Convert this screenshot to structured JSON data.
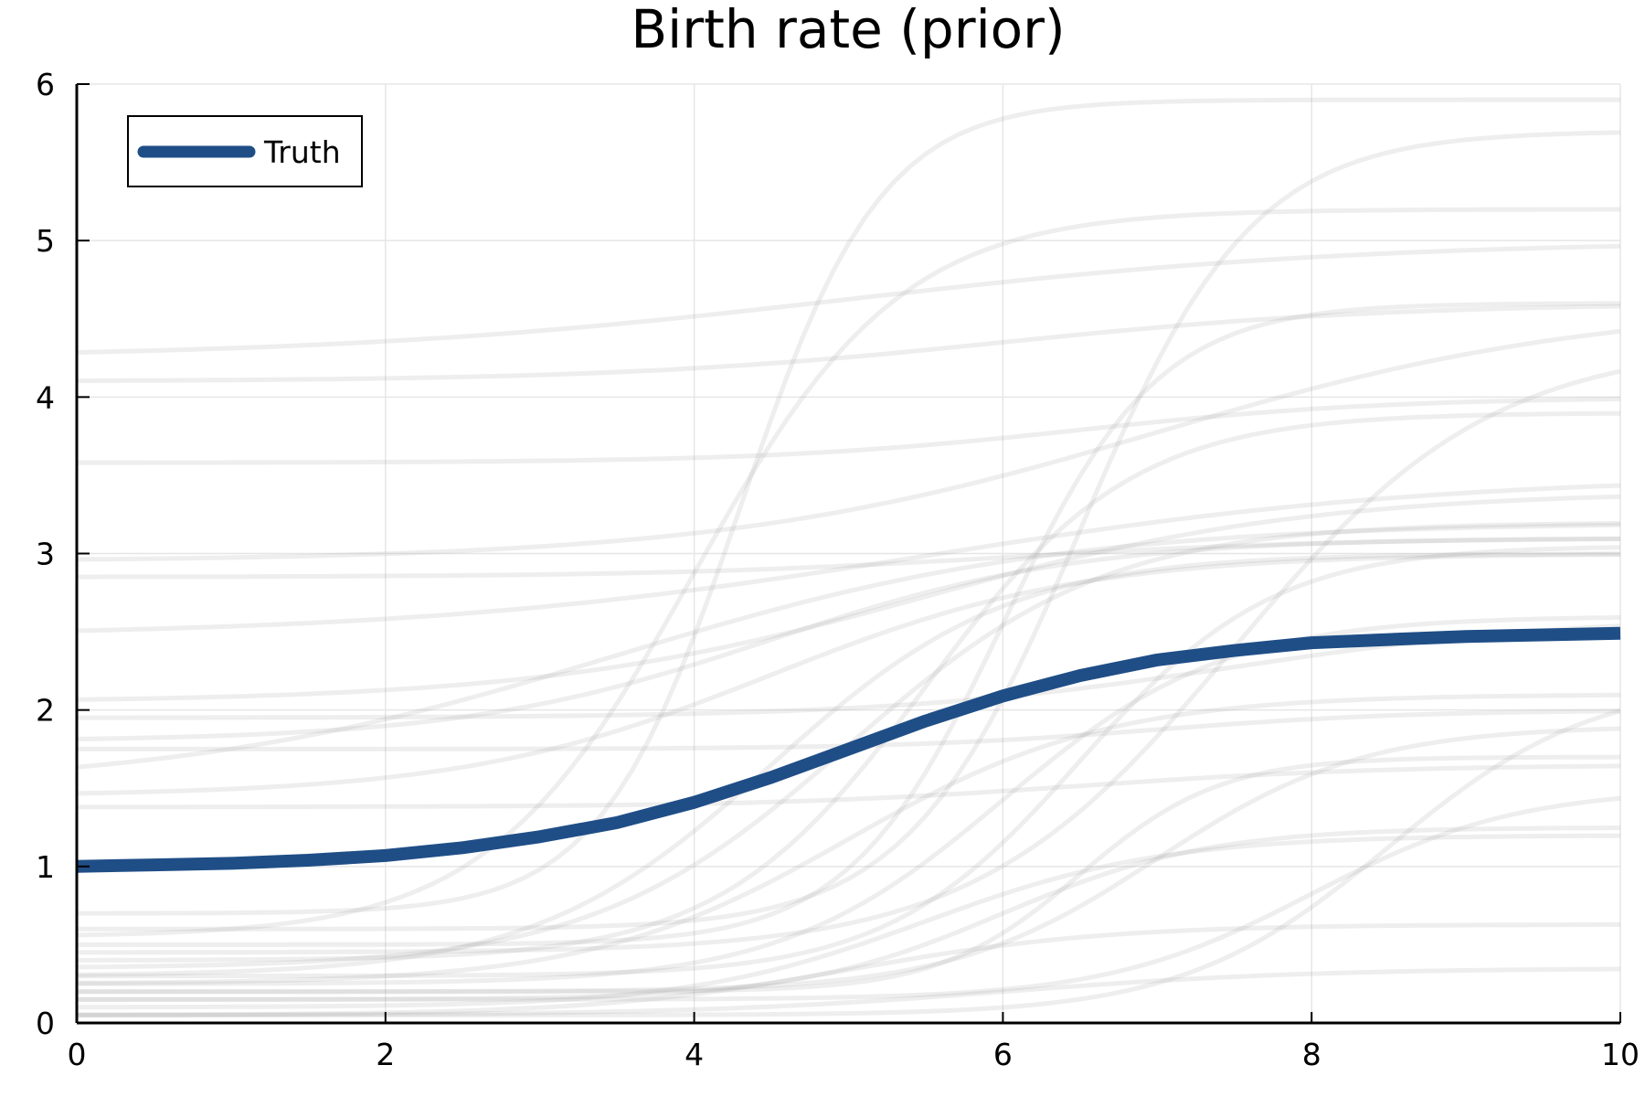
{
  "chart_data": {
    "type": "line",
    "title": "Birth rate (prior)",
    "xlabel": "",
    "ylabel": "",
    "xlim": [
      0,
      10
    ],
    "ylim": [
      0,
      6
    ],
    "x_ticks": [
      0,
      2,
      4,
      6,
      8,
      10
    ],
    "y_ticks": [
      0,
      1,
      2,
      3,
      4,
      5,
      6
    ],
    "grid": true,
    "legend": {
      "position": "top-left",
      "entries": [
        "Truth"
      ]
    },
    "colors": {
      "truth": "#1f4e87",
      "prior_samples": "#a0a0a0",
      "grid": "#e6e6e6",
      "axis": "#000000"
    },
    "series": [
      {
        "name": "Truth",
        "x": [
          0,
          0.5,
          1,
          1.5,
          2,
          2.5,
          3,
          3.5,
          4,
          4.5,
          5,
          5.5,
          6,
          6.5,
          7,
          7.5,
          8,
          8.5,
          9,
          9.5,
          10
        ],
        "y": [
          1.0,
          1.01,
          1.02,
          1.04,
          1.07,
          1.12,
          1.19,
          1.28,
          1.41,
          1.57,
          1.75,
          1.93,
          2.09,
          2.22,
          2.32,
          2.38,
          2.43,
          2.45,
          2.47,
          2.48,
          2.49
        ]
      }
    ],
    "prior_samples": [
      {
        "a": 4.25,
        "b": 5.0,
        "x0": 5.0,
        "k": 0.6
      },
      {
        "a": 4.1,
        "b": 4.6,
        "x0": 6.0,
        "k": 0.8
      },
      {
        "a": 3.58,
        "b": 4.0,
        "x0": 6.5,
        "k": 1.0
      },
      {
        "a": 2.95,
        "b": 4.6,
        "x0": 7.0,
        "k": 0.7
      },
      {
        "a": 2.85,
        "b": 3.1,
        "x0": 6.0,
        "k": 0.9
      },
      {
        "a": 2.47,
        "b": 3.5,
        "x0": 5.5,
        "k": 0.6
      },
      {
        "a": 2.05,
        "b": 3.4,
        "x0": 5.5,
        "k": 0.8
      },
      {
        "a": 1.95,
        "b": 2.6,
        "x0": 7.5,
        "k": 0.9
      },
      {
        "a": 1.8,
        "b": 3.1,
        "x0": 4.5,
        "k": 1.0
      },
      {
        "a": 1.75,
        "b": 2.0,
        "x0": 7.0,
        "k": 1.2
      },
      {
        "a": 1.5,
        "b": 3.2,
        "x0": 3.5,
        "k": 0.7
      },
      {
        "a": 1.45,
        "b": 3.0,
        "x0": 4.5,
        "k": 1.0
      },
      {
        "a": 1.38,
        "b": 1.65,
        "x0": 6.5,
        "k": 1.0
      },
      {
        "a": 0.7,
        "b": 5.9,
        "x0": 4.3,
        "k": 2.2
      },
      {
        "a": 0.6,
        "b": 5.7,
        "x0": 6.5,
        "k": 1.8
      },
      {
        "a": 0.55,
        "b": 5.2,
        "x0": 4.0,
        "k": 1.5
      },
      {
        "a": 0.5,
        "b": 4.6,
        "x0": 6.0,
        "k": 2.0
      },
      {
        "a": 0.45,
        "b": 4.35,
        "x0": 7.5,
        "k": 1.2
      },
      {
        "a": 0.4,
        "b": 3.9,
        "x0": 5.5,
        "k": 1.5
      },
      {
        "a": 0.35,
        "b": 3.2,
        "x0": 5.0,
        "k": 1.2
      },
      {
        "a": 0.3,
        "b": 3.05,
        "x0": 6.5,
        "k": 1.6
      },
      {
        "a": 0.3,
        "b": 3.0,
        "x0": 4.5,
        "k": 1.3
      },
      {
        "a": 0.25,
        "b": 2.6,
        "x0": 6.0,
        "k": 1.4
      },
      {
        "a": 0.25,
        "b": 2.1,
        "x0": 5.0,
        "k": 1.2
      },
      {
        "a": 0.2,
        "b": 1.9,
        "x0": 7.0,
        "k": 1.5
      },
      {
        "a": 0.2,
        "b": 1.7,
        "x0": 6.5,
        "k": 2.2
      },
      {
        "a": 0.15,
        "b": 1.5,
        "x0": 8.0,
        "k": 1.5
      },
      {
        "a": 0.15,
        "b": 1.25,
        "x0": 6.0,
        "k": 1.5
      },
      {
        "a": 0.1,
        "b": 1.2,
        "x0": 5.5,
        "k": 1.3
      },
      {
        "a": 0.05,
        "b": 0.63,
        "x0": 5.0,
        "k": 1.2
      },
      {
        "a": 0.05,
        "b": 2.2,
        "x0": 8.5,
        "k": 1.5
      },
      {
        "a": 0.05,
        "b": 0.35,
        "x0": 6.0,
        "k": 1.0
      }
    ]
  }
}
